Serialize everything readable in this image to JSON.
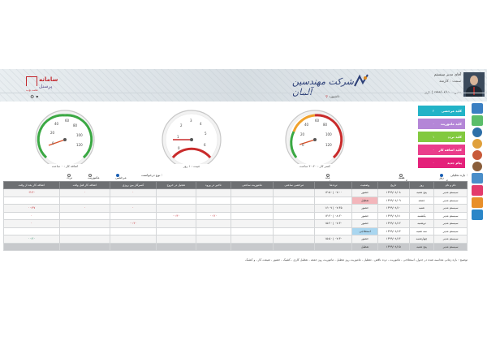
{
  "header": {
    "brand_left": {
      "line1": "سامانه",
      "line2": "پرسنل",
      "line3": "تحت وب"
    },
    "company_name": "شرکت مهندسین آلمان",
    "user": {
      "name": "آقای مدیر سیستم",
      "role": "سمت : کارمند",
      "status": "مدیریت ۱۳۹۹/۰۸/۱۱ | بازی",
      "status_right": "Manager fix"
    },
    "branch": "داشبورد",
    "settings_icon": "gear-icon"
  },
  "cards": [
    {
      "label": "کلید مرخصی",
      "value": "۲",
      "color": "#22b3c7"
    },
    {
      "label": "کلید ماموریت",
      "value": "۰",
      "color": "#b486d7"
    },
    {
      "label": "کلید تردد",
      "value": "۱",
      "color": "#82c93f"
    },
    {
      "label": "کلید اضافه کار",
      "value": "۰",
      "color": "#ea3d8b"
    },
    {
      "label": "پیام جدید",
      "value": "۰",
      "color": "#e4217a"
    }
  ],
  "gauges": [
    {
      "caption": "اضافه کار : ۰ ساعت",
      "value": 0,
      "arc": "green"
    },
    {
      "caption": "غیبت : ۱ روز",
      "value": 1,
      "arc": "red"
    },
    {
      "caption": "کسر کار : ۴۰:۲۰ ساعت",
      "value": 40,
      "arc": "mixed"
    }
  ],
  "filters": {
    "period_label": "بازه تحلیلی :",
    "period_options": [
      "روز گذشته",
      "هفته گذشته",
      "ماه جاری"
    ],
    "request_label": "نوع درخواست :",
    "request_options": [
      "مرخصی",
      "ماموریت",
      "تردد"
    ]
  },
  "table": {
    "columns": [
      "نام و نام",
      "روز",
      "تاریخ",
      "وضعیت",
      "ترددها",
      "مرخصی ساعتی",
      "ماموریت ساعتی",
      "تاخیر در ورود",
      "تعجیل در خروج",
      "کسرکار بین روزی",
      "اضافه کار قبل وقت",
      "اضافه کار بعد از وقت"
    ],
    "rows": [
      {
        "name": "سیستم مدیر",
        "day": "پنج شنبه",
        "date": "۱۳۹۹/۰۸/۰۸",
        "status": "حضور",
        "logs": "۱۲:۵۰ | ۰۷:۰۰",
        "c5": "",
        "c6": "",
        "c7": "",
        "c8": "",
        "c9": "۰",
        "c10": "۰",
        "c11": "۰۴:۳۰",
        "style": "odd"
      },
      {
        "name": "سیستم مدیر",
        "day": "جمعه",
        "date": "۱۳۹۹/۰۸/۰۹",
        "status": "تعطیل",
        "logs": "",
        "c5": "",
        "c6": "",
        "c7": "",
        "c8": "",
        "c9": "",
        "c10": "",
        "c11": "",
        "style": "pinkstatus"
      },
      {
        "name": "سیستم مدیر",
        "day": "شنبه",
        "date": "۱۳۹۹/۰۸/۱۰",
        "status": "حضور",
        "logs": "۱۶:۰۷ | ۰۷:۴۵",
        "c5": "",
        "c6": "",
        "c7": "",
        "c8": "",
        "c9": "۰",
        "c10": "۰",
        "c11": "۰۰:۳۷",
        "style": "odd"
      },
      {
        "name": "سیستم مدیر",
        "day": "یکشنبه",
        "date": "۱۳۹۹/۰۸/۱۱",
        "status": "حضور",
        "logs": "۱۴:۳۰ | ۰۸:۲۰",
        "c5": "",
        "c6": "",
        "c7": "۰۰:۲۰",
        "c8": "۰۰:۳۰",
        "c9": "",
        "c10": "",
        "c11": "۰",
        "style": ""
      },
      {
        "name": "سیستم مدیر",
        "day": "دوشنبه",
        "date": "۱۳۹۹/۰۸/۱۲",
        "status": "حضور",
        "logs": "۱۵:۲۰ | ۰۷:۳۰",
        "c5": "",
        "c6": "",
        "c7": "",
        "c8": "",
        "c9": "۰۰:۲۰",
        "c10": "",
        "c11": "۰",
        "style": "odd"
      },
      {
        "name": "سیستم مدیر",
        "day": "سه شنبه",
        "date": "۱۳۹۹/۰۸/۱۳",
        "status": "استعلاجی",
        "logs": "",
        "c5": "",
        "c6": "",
        "c7": "",
        "c8": "",
        "c9": "",
        "c10": "",
        "c11": "",
        "style": "bluestatus"
      },
      {
        "name": "سیستم مدیر",
        "day": "چهارشنبه",
        "date": "۱۳۹۹/۰۸/۱۴",
        "status": "حضور",
        "logs": "۱۵:۵۰ | ۰۷:۳۰",
        "c5": "",
        "c6": "",
        "c7": "",
        "c8": "",
        "c9": "",
        "c10": "",
        "c11": "۰۰:۲۰",
        "style": "odd"
      },
      {
        "name": "سیستم مدیر",
        "day": "پنج شنبه",
        "date": "۱۳۹۹/۰۸/۱۵",
        "status": "تعطیل",
        "logs": "",
        "c5": "",
        "c6": "",
        "c7": "",
        "c8": "",
        "c9": "",
        "c10": "",
        "c11": "",
        "style": "dark"
      }
    ]
  },
  "note": "توضیح : بازه زمانی محاسبه شده در جدول، استعلاجی ، ماموریت ، تردد ناقص ، تعطیل ، ماموریت روز تعطیل ، ماموریت روز جمعه ، تعطیل کاری ، کشیک ، حضور ، شیفت کار ، و کشیک"
}
